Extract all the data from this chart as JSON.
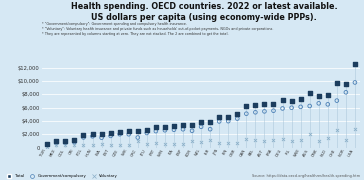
{
  "title_line1": "Health spending. OECD countries. 2022 or latest available.",
  "title_line2": "US dollars per capita (using economy-wide PPPs).",
  "subtitle_lines": [
    "* \"Government/compulsory\": Government spending and compulsory health insurance.",
    "* \"Voluntary\": Voluntary health insurance and private funds such as households' out-of-pocket payments, NGOs and private corporations.",
    "* They are represented by columns starting at zero. They are not stacked. The 2 are combined to get the total."
  ],
  "source": "Source: https://data.oecd.org/healthres/health-spending.htm",
  "background_color": "#d6e8f4",
  "country_labels": [
    "TUR",
    "MEX",
    "COL",
    "CRI",
    "POL",
    "HUN",
    "LVA",
    "EST",
    "CZE",
    "SVK",
    "GRC",
    "LTU",
    "PRT",
    "SVN",
    "ITA",
    "ESP",
    "KOR",
    "NZL",
    "ISR",
    "JPN",
    "FIN",
    "GBR",
    "CAN",
    "BEL",
    "AUT",
    "FRA",
    "DEU",
    "IRL",
    "SWE",
    "AUS",
    "DNK",
    "NLD",
    "CHE",
    "NOR",
    "USA"
  ],
  "total": [
    558,
    1060,
    1052,
    1151,
    1946,
    2082,
    2095,
    2200,
    2384,
    2424,
    2571,
    2699,
    3130,
    3148,
    3255,
    3328,
    3468,
    3925,
    3916,
    4666,
    4671,
    5128,
    6319,
    6403,
    6514,
    6630,
    7119,
    7028,
    7243,
    8288,
    7701,
    7880,
    9666,
    9522,
    12555
  ],
  "gov": [
    400,
    670,
    700,
    820,
    1530,
    1700,
    1490,
    1760,
    2010,
    2010,
    1520,
    2200,
    2480,
    2610,
    2680,
    2760,
    2530,
    3130,
    2770,
    3940,
    3980,
    4370,
    5100,
    5310,
    5450,
    5550,
    5890,
    6000,
    6130,
    6260,
    6660,
    6510,
    7070,
    8320,
    9800
  ],
  "voluntary": [
    158,
    390,
    352,
    331,
    416,
    382,
    605,
    440,
    374,
    414,
    1051,
    499,
    650,
    538,
    575,
    568,
    938,
    795,
    1146,
    726,
    691,
    758,
    1219,
    1093,
    1064,
    1080,
    1229,
    1028,
    1113,
    2028,
    1041,
    1370,
    2596,
    1202,
    2755
  ],
  "total_color": "#1c3d5e",
  "gov_color": "#4a7fb5",
  "voluntary_color": "#8aafc8",
  "line_color": "#a8c4d8",
  "ylim_max": 13000,
  "yticks": [
    0,
    2000,
    4000,
    6000,
    8000,
    10000,
    12000
  ],
  "ytick_labels": [
    "0",
    "$2,000",
    "$4,000",
    "$6,000",
    "$8,000",
    "$10,000",
    "$12,000"
  ]
}
